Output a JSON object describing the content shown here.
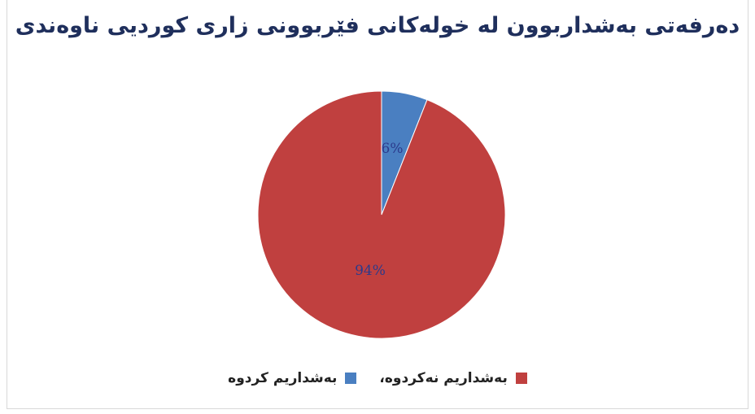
{
  "chart_data": {
    "type": "pie",
    "title": "دەرفەتی بەشداربوون لە خولەکانی فێربوونی زاری کوردیی ناوەندی",
    "slices": [
      {
        "label": "بەشداریم کردوە",
        "value": 6,
        "data_label": "6%",
        "color": "#4a7fc1"
      },
      {
        "label": "بەشداریم نەکردوە،",
        "value": 94,
        "data_label": "94%",
        "color": "#c0403f"
      }
    ],
    "legend_position": "bottom",
    "start_angle_deg": 0,
    "label_color": "#2b3a8c"
  }
}
